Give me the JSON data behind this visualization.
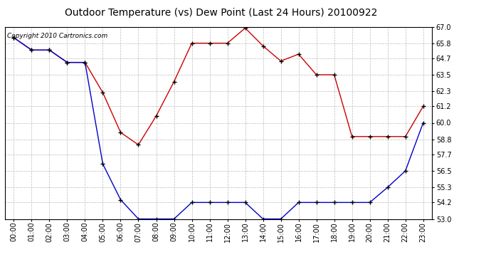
{
  "title": "Outdoor Temperature (vs) Dew Point (Last 24 Hours) 20100922",
  "copyright_text": "Copyright 2010 Cartronics.com",
  "hours": [
    "00:00",
    "01:00",
    "02:00",
    "03:00",
    "04:00",
    "05:00",
    "06:00",
    "07:00",
    "08:00",
    "09:00",
    "10:00",
    "11:00",
    "12:00",
    "13:00",
    "14:00",
    "15:00",
    "16:00",
    "17:00",
    "18:00",
    "19:00",
    "20:00",
    "21:00",
    "22:00",
    "23:00"
  ],
  "temp": [
    66.2,
    65.3,
    65.3,
    64.4,
    64.4,
    62.2,
    59.3,
    58.4,
    60.5,
    63.0,
    65.8,
    65.8,
    65.8,
    66.9,
    65.6,
    64.5,
    65.0,
    63.5,
    63.5,
    59.0,
    59.0,
    59.0,
    59.0,
    61.2
  ],
  "dew": [
    66.2,
    65.3,
    65.3,
    64.4,
    64.4,
    57.0,
    54.4,
    53.0,
    53.0,
    53.0,
    54.2,
    54.2,
    54.2,
    54.2,
    53.0,
    53.0,
    54.2,
    54.2,
    54.2,
    54.2,
    54.2,
    55.3,
    56.5,
    60.0
  ],
  "ylim": [
    53.0,
    67.0
  ],
  "yticks": [
    53.0,
    54.2,
    55.3,
    56.5,
    57.7,
    58.8,
    60.0,
    61.2,
    62.3,
    63.5,
    64.7,
    65.8,
    67.0
  ],
  "temp_color": "#cc0000",
  "dew_color": "#0000cc",
  "bg_color": "#ffffff",
  "grid_color": "#bbbbbb",
  "title_fontsize": 10,
  "copyright_fontsize": 6.5,
  "tick_fontsize": 7
}
